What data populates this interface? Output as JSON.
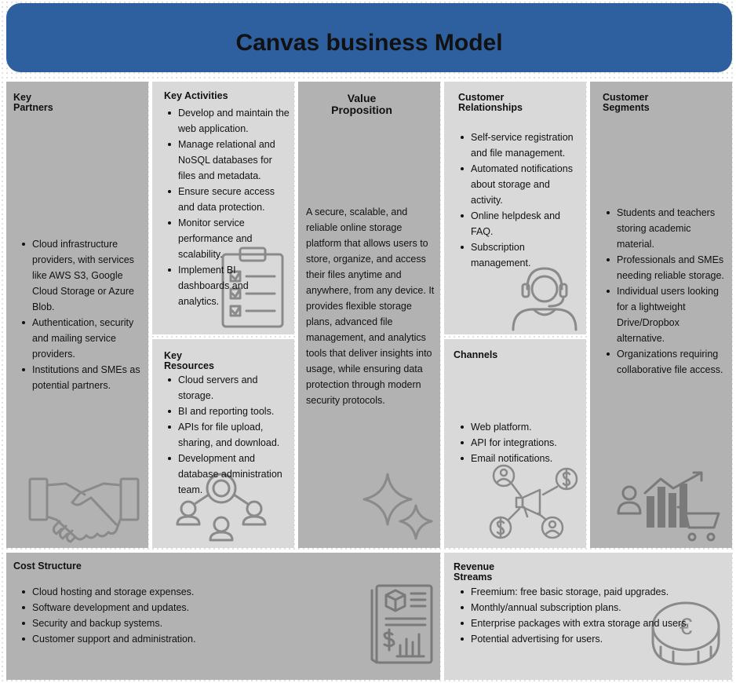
{
  "header": {
    "title": "Canvas business Model"
  },
  "key_partners": {
    "title_line1": "Key",
    "title_line2": "Partners",
    "items": [
      "Cloud infrastructure providers, with services like AWS S3, Google Cloud Storage or Azure Blob.",
      "Authentication, security and mailing service providers.",
      "Institutions and SMEs as potential partners."
    ]
  },
  "key_activities": {
    "title": "Key Activities",
    "items": [
      "Develop and maintain the web application.",
      "Manage relational and NoSQL databases for files and metadata.",
      "Ensure secure access and data protection.",
      "Monitor service performance and scalability.",
      "Implement BI dashboards and analytics."
    ]
  },
  "key_resources": {
    "title_line1": "Key",
    "title_line2": "Resources",
    "items": [
      "Cloud servers and storage.",
      "BI and reporting tools.",
      "APIs for file upload, sharing, and download.",
      "Development and database administration team."
    ]
  },
  "value_proposition": {
    "title_line1": "Value",
    "title_line2": "Proposition",
    "text": "A secure, scalable, and reliable online storage platform that allows users to store, organize, and access their files anytime and anywhere, from any device. It provides flexible storage plans, advanced file management, and analytics tools that deliver insights into usage, while ensuring data protection through modern security protocols."
  },
  "customer_relationships": {
    "title_line1": "Customer",
    "title_line2": "Relationships",
    "items": [
      "Self-service registration and file management.",
      "Automated notifications about storage and activity.",
      "Online helpdesk and FAQ.",
      "Subscription management."
    ]
  },
  "channels": {
    "title": "Channels",
    "items": [
      "Web platform.",
      "API for integrations.",
      "Email notifications."
    ]
  },
  "customer_segments": {
    "title_line1": "Customer",
    "title_line2": "Segments",
    "items": [
      "Students and teachers storing academic material.",
      "Professionals and SMEs needing reliable storage.",
      "Individual users looking for a lightweight Drive/Dropbox alternative.",
      "Organizations requiring collaborative file access."
    ]
  },
  "cost_structure": {
    "title": "Cost Structure",
    "items": [
      "Cloud hosting and storage expenses.",
      "Software development and updates.",
      "Security and backup systems.",
      "Customer support and administration."
    ]
  },
  "revenue_streams": {
    "title_line1": "Revenue",
    "title_line2": "Streams",
    "items": [
      "Freemium: free basic storage, paid upgrades.",
      "Monthly/annual subscription plans.",
      "Enterprise packages with extra storage and users.",
      "Potential advertising for users."
    ],
    "currency_symbol": "€"
  },
  "icons": {
    "partners": "handshake-icon",
    "activities": "clipboard-checklist-icon",
    "resources": "team-network-icon",
    "value": "sparkle-icon",
    "relationships": "headset-agent-icon",
    "channels": "megaphone-network-icon",
    "segments": "growth-chart-cart-icon",
    "costs": "cost-report-icon",
    "revenue": "coin-icon"
  },
  "colors": {
    "header": "#2e5f9f",
    "dark_block": "#b2b2b2",
    "light_block": "#d9d9d9",
    "icon_stroke": "#8a8a8a"
  }
}
